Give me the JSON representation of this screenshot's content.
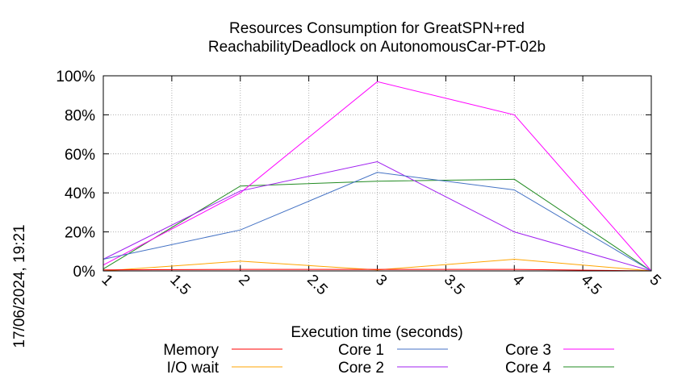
{
  "chart_data": {
    "type": "line",
    "title": "Resources Consumption for GreatSPN+red",
    "subtitle": "ReachabilityDeadlock on AutonomousCar-PT-02b",
    "xlabel": "Execution time (seconds)",
    "ylabel": "",
    "side_stamp": "17/06/2024, 19:21",
    "xlim": [
      1,
      5
    ],
    "ylim": [
      0,
      100
    ],
    "x_ticks": [
      "1",
      "1.5",
      "2",
      "2.5",
      "3",
      "3.5",
      "4",
      "4.5",
      "5"
    ],
    "y_ticks": [
      "0%",
      "20%",
      "40%",
      "60%",
      "80%",
      "100%"
    ],
    "grid": true,
    "legend_position": "bottom",
    "x": [
      1,
      2,
      3,
      4,
      5
    ],
    "series": [
      {
        "name": "Memory",
        "color": "#ff0000",
        "values": [
          0.5,
          0.8,
          0.8,
          0.8,
          0
        ]
      },
      {
        "name": "I/O wait",
        "color": "#ffa500",
        "values": [
          0,
          5,
          0.5,
          6,
          0
        ]
      },
      {
        "name": "Core 1",
        "color": "#4472c4",
        "values": [
          6,
          21,
          50.5,
          41.5,
          0
        ]
      },
      {
        "name": "Core 2",
        "color": "#a020f0",
        "values": [
          6,
          41,
          56,
          20,
          0
        ]
      },
      {
        "name": "Core 3",
        "color": "#ff00ff",
        "values": [
          3,
          40,
          97,
          80,
          0
        ]
      },
      {
        "name": "Core 4",
        "color": "#228b22",
        "values": [
          1,
          43.5,
          46,
          47,
          0
        ]
      }
    ]
  }
}
